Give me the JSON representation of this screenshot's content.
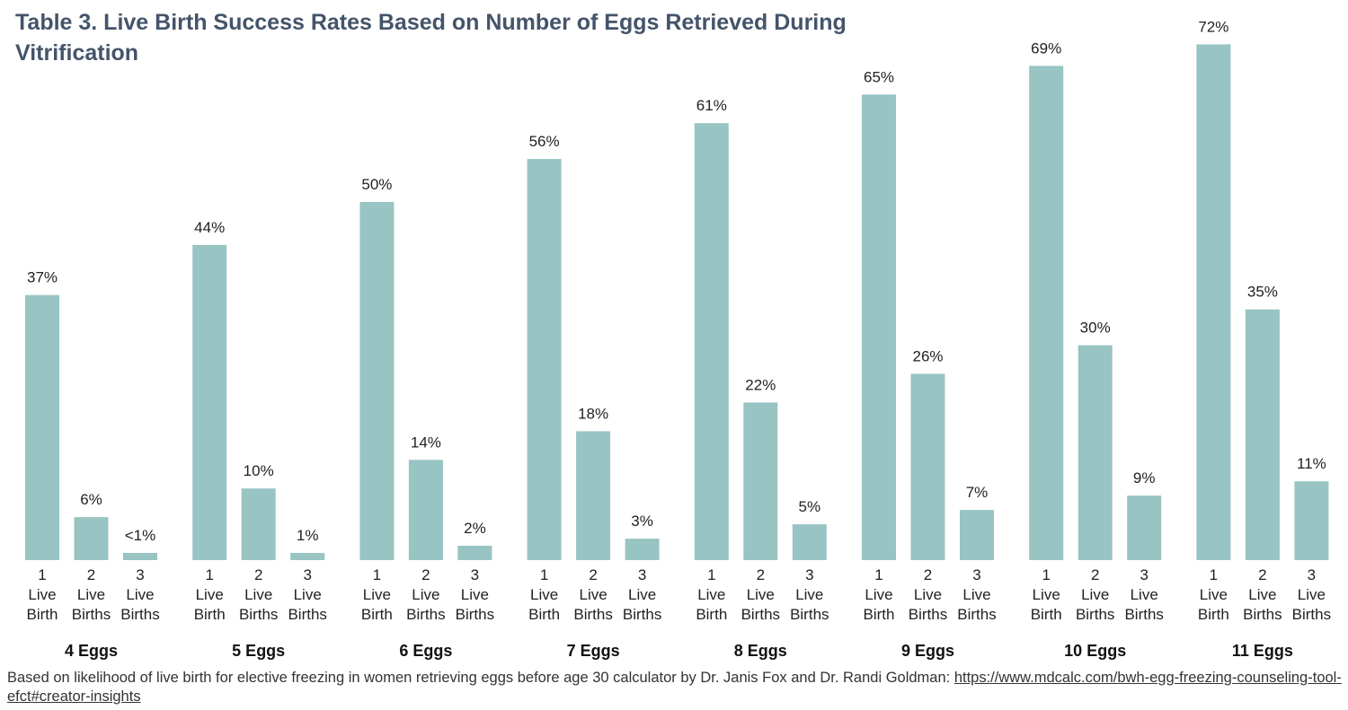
{
  "title": "Table 3. Live Birth Success Rates Based on Number of Eggs Retrieved During Vitrification",
  "footnote": {
    "text": "Based on likelihood of live birth for elective freezing in women retrieving eggs before age 30 calculator by Dr. Janis Fox and Dr. Randi Goldman: ",
    "link": "https://www.mdcalc.com/bwh-egg-freezing-counseling-tool-efct#creator-insights"
  },
  "chart_data": {
    "type": "bar",
    "title": "Table 3. Live Birth Success Rates Based on Number of Eggs Retrieved During Vitrification",
    "xlabel": "",
    "ylabel": "",
    "ylim": [
      0,
      75
    ],
    "grid": false,
    "bar_color": "#98c4c3",
    "groups": [
      {
        "label": "4 Eggs",
        "bars": [
          {
            "category": [
              "1",
              "Live",
              "Birth"
            ],
            "value": 37,
            "label": "37%"
          },
          {
            "category": [
              "2",
              "Live",
              "Births"
            ],
            "value": 6,
            "label": "6%"
          },
          {
            "category": [
              "3",
              "Live",
              "Births"
            ],
            "value": 1,
            "label": "<1%"
          }
        ]
      },
      {
        "label": "5 Eggs",
        "bars": [
          {
            "category": [
              "1",
              "Live",
              "Birth"
            ],
            "value": 44,
            "label": "44%"
          },
          {
            "category": [
              "2",
              "Live",
              "Births"
            ],
            "value": 10,
            "label": "10%"
          },
          {
            "category": [
              "3",
              "Live",
              "Births"
            ],
            "value": 1,
            "label": "1%"
          }
        ]
      },
      {
        "label": "6 Eggs",
        "bars": [
          {
            "category": [
              "1",
              "Live",
              "Birth"
            ],
            "value": 50,
            "label": "50%"
          },
          {
            "category": [
              "2",
              "Live",
              "Births"
            ],
            "value": 14,
            "label": "14%"
          },
          {
            "category": [
              "3",
              "Live",
              "Births"
            ],
            "value": 2,
            "label": "2%"
          }
        ]
      },
      {
        "label": "7 Eggs",
        "bars": [
          {
            "category": [
              "1",
              "Live",
              "Birth"
            ],
            "value": 56,
            "label": "56%"
          },
          {
            "category": [
              "2",
              "Live",
              "Births"
            ],
            "value": 18,
            "label": "18%"
          },
          {
            "category": [
              "3",
              "Live",
              "Births"
            ],
            "value": 3,
            "label": "3%"
          }
        ]
      },
      {
        "label": "8 Eggs",
        "bars": [
          {
            "category": [
              "1",
              "Live",
              "Birth"
            ],
            "value": 61,
            "label": "61%"
          },
          {
            "category": [
              "2",
              "Live",
              "Births"
            ],
            "value": 22,
            "label": "22%"
          },
          {
            "category": [
              "3",
              "Live",
              "Births"
            ],
            "value": 5,
            "label": "5%"
          }
        ]
      },
      {
        "label": "9 Eggs",
        "bars": [
          {
            "category": [
              "1",
              "Live",
              "Birth"
            ],
            "value": 65,
            "label": "65%"
          },
          {
            "category": [
              "2",
              "Live",
              "Births"
            ],
            "value": 26,
            "label": "26%"
          },
          {
            "category": [
              "3",
              "Live",
              "Births"
            ],
            "value": 7,
            "label": "7%"
          }
        ]
      },
      {
        "label": "10 Eggs",
        "bars": [
          {
            "category": [
              "1",
              "Live",
              "Birth"
            ],
            "value": 69,
            "label": "69%"
          },
          {
            "category": [
              "2",
              "Live",
              "Births"
            ],
            "value": 30,
            "label": "30%"
          },
          {
            "category": [
              "3",
              "Live",
              "Births"
            ],
            "value": 9,
            "label": "9%"
          }
        ]
      },
      {
        "label": "11 Eggs",
        "bars": [
          {
            "category": [
              "1",
              "Live",
              "Birth"
            ],
            "value": 72,
            "label": "72%"
          },
          {
            "category": [
              "2",
              "Live",
              "Births"
            ],
            "value": 35,
            "label": "35%"
          },
          {
            "category": [
              "3",
              "Live",
              "Births"
            ],
            "value": 11,
            "label": "11%"
          }
        ]
      }
    ]
  }
}
